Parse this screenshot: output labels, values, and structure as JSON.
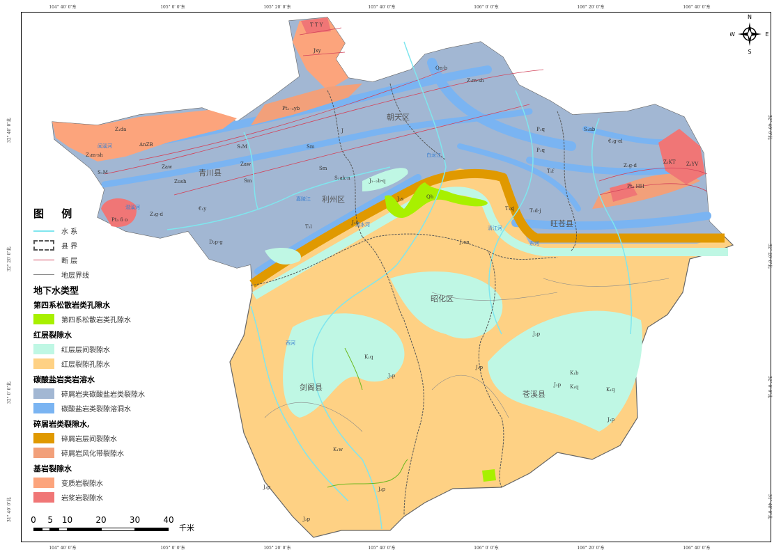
{
  "coordinates": {
    "longitude_ticks": [
      "104° 40′ 0″东",
      "105° 0′ 0″东",
      "105° 20′ 0″东",
      "105° 40′ 0″东",
      "106° 0′ 0″东",
      "106° 20′ 0″东",
      "106° 40′ 0″东"
    ],
    "latitude_ticks": [
      "32° 40′ 0″北",
      "32° 20′ 0″北",
      "32° 0′ 0″北",
      "31° 40′ 0″北"
    ]
  },
  "compass": {
    "n": "N",
    "s": "S",
    "e": "E",
    "w": "W"
  },
  "counties": [
    "青川县",
    "朝天区",
    "利州区",
    "旺苍县",
    "昭化区",
    "剑阁县",
    "苍溪县"
  ],
  "rivers": [
    "嘉陵江",
    "白龙江",
    "清水河",
    "东河",
    "西河",
    "闻溪河",
    "潜溪河",
    "清江河"
  ],
  "strata_labels": [
    "T T Y",
    "Jxy",
    "Pt₁₋₂yb",
    "Z₁da",
    "AnZB",
    "Z₁m-sh",
    "S₁M",
    "S₁M",
    "Zaw",
    "Zush",
    "Sm",
    "Sm",
    "Sm",
    "Pt₃ δ o",
    "Z₁g-d",
    "€₁y",
    "D₂p-g",
    "Qn-b",
    "Z₁m-sh",
    "Zaw",
    "J",
    "S₁ak-n",
    "J₁₋₂b-q",
    "J₁s",
    "Qh",
    "J₁s",
    "T₂l",
    "J₂sn",
    "T₃xj",
    "T₁d-j",
    "P₁q",
    "P₁q",
    "S₁ab",
    "€₁g-el",
    "Z₁g-d",
    "Z₁KT",
    "Z₁YV",
    "Pt₃ HH",
    "T₁f",
    "J₃p",
    "J₃p",
    "J₃p",
    "J₃p",
    "J₃p",
    "J₃p",
    "J₃p",
    "K₁q",
    "K₁b",
    "K₁q",
    "K₁w",
    "K₁q",
    "J₃p"
  ],
  "legend": {
    "title": "图  例",
    "line_items": [
      {
        "label": "水  系",
        "color": "#7fe6ee",
        "style": "line"
      },
      {
        "label": "县  界",
        "color": "#555555",
        "style": "dashed-box"
      },
      {
        "label": "断  层",
        "color": "#d2435a",
        "style": "line"
      },
      {
        "label": "地层界线",
        "color": "#888888",
        "style": "line"
      }
    ],
    "groundwater_title": "地下水类型",
    "groups": [
      {
        "heading": "第四系松散岩类孔隙水",
        "items": [
          {
            "label": "第四系松散岩类孔隙水",
            "color": "#a8f000"
          }
        ]
      },
      {
        "heading": "红层裂隙水",
        "items": [
          {
            "label": "红层层间裂隙水",
            "color": "#bff7e4"
          },
          {
            "label": "红层裂隙孔隙水",
            "color": "#fed184"
          }
        ]
      },
      {
        "heading": "碳酸盐岩类岩溶水",
        "items": [
          {
            "label": "碎屑岩夹碳酸盐岩类裂隙水",
            "color": "#a2b7d3"
          },
          {
            "label": "碳酸盐岩类裂隙溶洞水",
            "color": "#7ab4f2"
          }
        ]
      },
      {
        "heading": "碎屑岩类裂隙水,",
        "items": [
          {
            "label": "碎屑岩层间裂隙水",
            "color": "#e09900"
          },
          {
            "label": "碎屑岩风化带裂隙水",
            "color": "#f2a07a"
          }
        ]
      },
      {
        "heading": "基岩裂隙水",
        "items": [
          {
            "label": "变质岩裂隙水",
            "color": "#fca47c"
          },
          {
            "label": "岩浆岩裂隙水",
            "color": "#f07676"
          }
        ]
      }
    ]
  },
  "scale_bar": {
    "ticks": [
      "0",
      "5",
      "10",
      "20",
      "30",
      "40"
    ],
    "unit": "千米"
  }
}
